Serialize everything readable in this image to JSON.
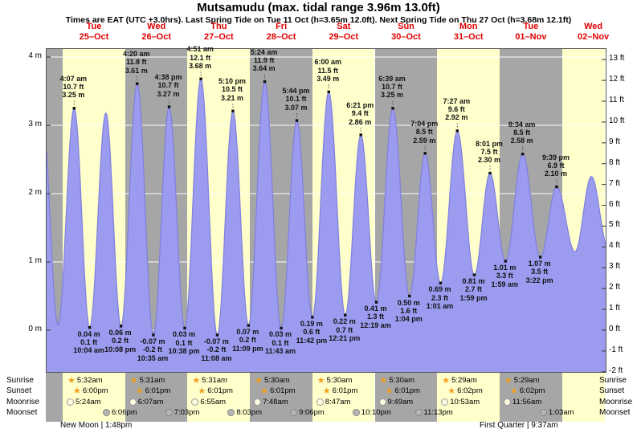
{
  "header": {
    "title": "Mutsamudu (max. tidal range 3.96m 13.0ft)",
    "subtitle": "Times are EAT (UTC +3.0hrs). Last Spring Tide on Tue 11 Oct (h=3.65m 12.0ft). Next Spring Tide on Thu 27 Oct (h=3.68m 12.1ft)"
  },
  "chart_data": {
    "type": "area",
    "title": "Tide height curve for Mutsamudu, 25 Oct - 02 Nov",
    "unit_left": "m",
    "unit_right": "ft",
    "ylim_m": [
      -0.61,
      4.12
    ],
    "ylim_ft": [
      -2,
      13.5
    ],
    "colors": {
      "band_light": "#ffffcb",
      "band_dark": "#a6a6a6",
      "curve_fill": "#9b9bf0",
      "curve_stroke": "#7f7fe0",
      "day_label": "#e00000",
      "grid": "#ffffff"
    },
    "days": [
      {
        "name": "Tue",
        "date": "25–Oct"
      },
      {
        "name": "Wed",
        "date": "26–Oct"
      },
      {
        "name": "Thu",
        "date": "27–Oct"
      },
      {
        "name": "Fri",
        "date": "28–Oct"
      },
      {
        "name": "Sat",
        "date": "29–Oct"
      },
      {
        "name": "Sun",
        "date": "30–Oct"
      },
      {
        "name": "Mon",
        "date": "31–Oct"
      },
      {
        "name": "Tue",
        "date": "01–Nov"
      },
      {
        "name": "Wed",
        "date": "02–Nov"
      }
    ],
    "left_ticks": [
      {
        "label": "4 m",
        "m": 4
      },
      {
        "label": "3 m",
        "m": 3
      },
      {
        "label": "2 m",
        "m": 2
      },
      {
        "label": "1 m",
        "m": 1
      },
      {
        "label": "0 m",
        "m": 0
      }
    ],
    "right_ticks": [
      {
        "label": "13 ft",
        "ft": 13
      },
      {
        "label": "12 ft",
        "ft": 12
      },
      {
        "label": "11 ft",
        "ft": 11
      },
      {
        "label": "10 ft",
        "ft": 10
      },
      {
        "label": "9 ft",
        "ft": 9
      },
      {
        "label": "8 ft",
        "ft": 8
      },
      {
        "label": "7 ft",
        "ft": 7
      },
      {
        "label": "6 ft",
        "ft": 6
      },
      {
        "label": "5 ft",
        "ft": 5
      },
      {
        "label": "4 ft",
        "ft": 4
      },
      {
        "label": "3 ft",
        "ft": 3
      },
      {
        "label": "2 ft",
        "ft": 2
      },
      {
        "label": "1 ft",
        "ft": 1
      },
      {
        "label": "0 ft",
        "ft": 0
      },
      {
        "label": "-1 ft",
        "ft": -1
      },
      {
        "label": "-2 ft",
        "ft": -2
      }
    ],
    "events": [
      {
        "d": -1,
        "hour": 15.8,
        "m": 3.2,
        "type": "high"
      },
      {
        "d": -1,
        "hour": 21.9,
        "m": 0.08,
        "type": "low"
      },
      {
        "d": 0,
        "hour": 4.117,
        "m": 3.25,
        "type": "high",
        "lines": [
          "4:07 am",
          "10.7 ft",
          "3.25 m"
        ]
      },
      {
        "d": 0,
        "hour": 10.067,
        "m": 0.04,
        "type": "low",
        "lines": [
          "0.04 m",
          "0.1 ft",
          "10:04 am"
        ]
      },
      {
        "d": 0,
        "hour": 16.3,
        "m": 3.18,
        "type": "high"
      },
      {
        "d": 0,
        "hour": 22.133,
        "m": 0.06,
        "type": "low",
        "lines": [
          "0.06 m",
          "0.2 ft",
          "10:08 pm"
        ]
      },
      {
        "d": 1,
        "hour": 4.333,
        "m": 3.61,
        "type": "high",
        "lines": [
          "4:20 am",
          "11.8 ft",
          "3.61 m"
        ]
      },
      {
        "d": 1,
        "hour": 10.583,
        "m": -0.07,
        "type": "low",
        "lines": [
          "-0.07 m",
          "-0.2 ft",
          "10:35 am"
        ]
      },
      {
        "d": 1,
        "hour": 16.633,
        "m": 3.27,
        "type": "high",
        "lines": [
          "4:38 pm",
          "10.7 ft",
          "3.27 m"
        ]
      },
      {
        "d": 1,
        "hour": 22.633,
        "m": 0.03,
        "type": "low",
        "lines": [
          "0.03 m",
          "0.1 ft",
          "10:38 pm"
        ]
      },
      {
        "d": 2,
        "hour": 4.85,
        "m": 3.68,
        "type": "high",
        "lines": [
          "4:51 am",
          "12.1 ft",
          "3.68 m"
        ]
      },
      {
        "d": 2,
        "hour": 11.133,
        "m": -0.07,
        "type": "low",
        "lines": [
          "-0.07 m",
          "-0.2 ft",
          "11:08 am"
        ]
      },
      {
        "d": 2,
        "hour": 17.167,
        "m": 3.21,
        "type": "high",
        "lines": [
          "5:10 pm",
          "10.5 ft",
          "3.21 m"
        ]
      },
      {
        "d": 2,
        "hour": 23.15,
        "m": 0.07,
        "type": "low",
        "lines": [
          "0.07 m",
          "0.2 ft",
          "11:09 pm"
        ]
      },
      {
        "d": 3,
        "hour": 5.4,
        "m": 3.64,
        "type": "high",
        "lines": [
          "5:24 am",
          "11.9 ft",
          "3.64 m"
        ]
      },
      {
        "d": 3,
        "hour": 11.717,
        "m": 0.03,
        "type": "low",
        "lines": [
          "0.03 m",
          "0.1 ft",
          "11:43 am"
        ]
      },
      {
        "d": 3,
        "hour": 17.733,
        "m": 3.07,
        "type": "high",
        "lines": [
          "5:44 pm",
          "10.1 ft",
          "3.07 m"
        ]
      },
      {
        "d": 3,
        "hour": 23.7,
        "m": 0.19,
        "type": "low",
        "lines": [
          "0.19 m",
          "0.6 ft",
          "11:42 pm"
        ]
      },
      {
        "d": 4,
        "hour": 6.0,
        "m": 3.49,
        "type": "high",
        "lines": [
          "6:00 am",
          "11.5 ft",
          "3.49 m"
        ]
      },
      {
        "d": 4,
        "hour": 12.35,
        "m": 0.22,
        "type": "low",
        "lines": [
          "0.22 m",
          "0.7 ft",
          "12:21 pm"
        ]
      },
      {
        "d": 4,
        "hour": 18.35,
        "m": 2.86,
        "type": "high",
        "lines": [
          "6:21 pm",
          "9.4 ft",
          "2.86 m"
        ]
      },
      {
        "d": 5,
        "hour": 0.317,
        "m": 0.41,
        "type": "low",
        "lines": [
          "0.41 m",
          "1.3 ft",
          "12:19 am"
        ]
      },
      {
        "d": 5,
        "hour": 6.65,
        "m": 3.25,
        "type": "high",
        "lines": [
          "6:39 am",
          "10.7 ft",
          "3.25 m"
        ]
      },
      {
        "d": 5,
        "hour": 13.067,
        "m": 0.5,
        "type": "low",
        "lines": [
          "0.50 m",
          "1.6 ft",
          "1:04 pm"
        ]
      },
      {
        "d": 5,
        "hour": 19.067,
        "m": 2.59,
        "type": "high",
        "lines": [
          "7:04 pm",
          "8.5 ft",
          "2.59 m"
        ]
      },
      {
        "d": 6,
        "hour": 1.017,
        "m": 0.69,
        "type": "low",
        "lines": [
          "0.69 m",
          "2.3 ft",
          "1:01 am"
        ]
      },
      {
        "d": 6,
        "hour": 7.45,
        "m": 2.92,
        "type": "high",
        "lines": [
          "7:27 am",
          "9.6 ft",
          "2.92 m"
        ]
      },
      {
        "d": 6,
        "hour": 13.983,
        "m": 0.81,
        "type": "low",
        "lines": [
          "0.81 m",
          "2.7 ft",
          "1:59 pm"
        ]
      },
      {
        "d": 6,
        "hour": 20.017,
        "m": 2.3,
        "type": "high",
        "lines": [
          "8:01 pm",
          "7.5 ft",
          "2.30 m"
        ]
      },
      {
        "d": 7,
        "hour": 1.983,
        "m": 1.01,
        "type": "low",
        "lines": [
          "1.01 m",
          "3.3 ft",
          "1:59 am"
        ]
      },
      {
        "d": 7,
        "hour": 8.567,
        "m": 2.58,
        "type": "high",
        "lines": [
          "8:34 am",
          "8.5 ft",
          "2.58 m"
        ]
      },
      {
        "d": 7,
        "hour": 15.367,
        "m": 1.07,
        "type": "low",
        "lines": [
          "1.07 m",
          "3.5 ft",
          "3:22 pm"
        ]
      },
      {
        "d": 7,
        "hour": 21.65,
        "m": 2.1,
        "type": "high",
        "lines": [
          "9:39 pm",
          "6.9 ft",
          "2.10 m"
        ]
      },
      {
        "d": 8,
        "hour": 4.7,
        "m": 1.15,
        "type": "low"
      },
      {
        "d": 8,
        "hour": 11.0,
        "m": 2.25,
        "type": "high"
      },
      {
        "d": 8,
        "hour": 17.5,
        "m": 1.2,
        "type": "low"
      }
    ]
  },
  "astro": {
    "rows": [
      {
        "label": "Sunrise",
        "icon": "sunrise-star-icon",
        "entries": [
          {
            "day": 0,
            "time": "5:32am"
          },
          {
            "day": 1,
            "time": "5:31am"
          },
          {
            "day": 2,
            "time": "5:31am"
          },
          {
            "day": 3,
            "time": "5:30am"
          },
          {
            "day": 4,
            "time": "5:30am"
          },
          {
            "day": 5,
            "time": "5:30am"
          },
          {
            "day": 6,
            "time": "5:29am"
          },
          {
            "day": 7,
            "time": "5:29am"
          }
        ]
      },
      {
        "label": "Sunset",
        "icon": "sunset-star-icon",
        "entries": [
          {
            "day": 0,
            "time": "6:00pm"
          },
          {
            "day": 1,
            "time": "6:01pm"
          },
          {
            "day": 2,
            "time": "6:01pm"
          },
          {
            "day": 3,
            "time": "6:01pm"
          },
          {
            "day": 4,
            "time": "6:01pm"
          },
          {
            "day": 5,
            "time": "6:01pm"
          },
          {
            "day": 6,
            "time": "6:02pm"
          },
          {
            "day": 7,
            "time": "6:02pm"
          }
        ]
      },
      {
        "label": "Moonrise",
        "icon": "moonrise-circle-icon",
        "entries": [
          {
            "day": 0,
            "time": "5:24am"
          },
          {
            "day": 1,
            "time": "6:07am"
          },
          {
            "day": 2,
            "time": "6:55am"
          },
          {
            "day": 3,
            "time": "7:48am"
          },
          {
            "day": 4,
            "time": "8:47am"
          },
          {
            "day": 5,
            "time": "9:49am"
          },
          {
            "day": 6,
            "time": "10:53am"
          },
          {
            "day": 7,
            "time": "11:56am"
          }
        ]
      },
      {
        "label": "Moonset",
        "icon": "moonset-circle-icon",
        "entries": [
          {
            "day": 0,
            "time": "6:06pm"
          },
          {
            "day": 1,
            "time": "7:03pm"
          },
          {
            "day": 2,
            "time": "8:03pm"
          },
          {
            "day": 3,
            "time": "9:06pm"
          },
          {
            "day": 4,
            "time": "10:10pm"
          },
          {
            "day": 5,
            "time": "11:13pm"
          },
          {
            "day": 7,
            "time": "1:03am"
          }
        ]
      }
    ],
    "footer": {
      "left": "New Moon | 1:48pm",
      "right": "First Quarter | 9:37am"
    }
  }
}
